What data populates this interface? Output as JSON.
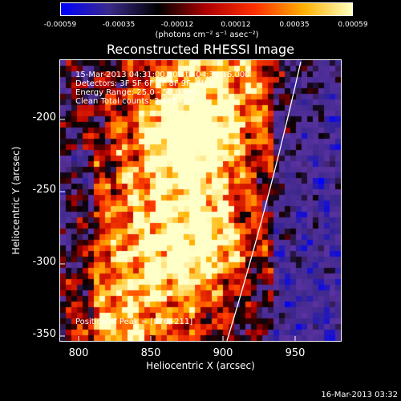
{
  "colorbar": {
    "ticks": [
      "-0.00059",
      "-0.00035",
      "-0.00012",
      "0.00012",
      "0.00035",
      "0.00059"
    ],
    "units": "(photons cm⁻² s⁻¹ asec⁻²)",
    "colors": [
      "#0000ff",
      "#3a2a8a",
      "#000000",
      "#b00000",
      "#ff3000",
      "#ffb000",
      "#ffffc0"
    ]
  },
  "title": "Reconstructed RHESSI Image",
  "info": {
    "time": "15-Mar-2013 04:31:00.000 to 04:32:16.000",
    "detectors": "Detectors: 3F 5F 6F 7F 8F 9F, Att 0",
    "energy": "Energy Range: 25.0 - 50.0 keV",
    "clean": "Clean     Total counts: 2.47E+03",
    "peak": "Position of Peak = [876,-211]"
  },
  "axes": {
    "xlabel": "Heliocentric X (arcsec)",
    "ylabel": "Heliocentric Y (arcsec)",
    "xticks": [
      "800",
      "850",
      "900",
      "950"
    ],
    "yticks": [
      "-200",
      "-250",
      "-300",
      "-350"
    ]
  },
  "timestamp": "16-Mar-2013 03:32"
}
